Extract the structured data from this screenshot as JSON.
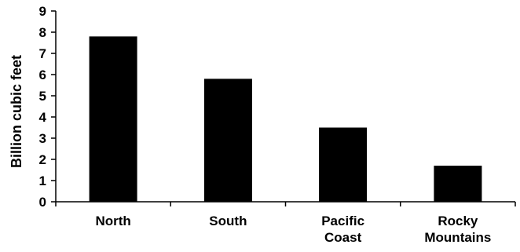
{
  "chart_data": {
    "type": "bar",
    "categories": [
      [
        "North"
      ],
      [
        "South"
      ],
      [
        "Pacific",
        "Coast"
      ],
      [
        "Rocky",
        "Mountains"
      ]
    ],
    "values": [
      7.8,
      5.8,
      3.5,
      1.7
    ],
    "ylabel": "Billion cubic feet",
    "xlabel": "",
    "ylim": [
      0,
      9
    ],
    "yticks": [
      0,
      1,
      2,
      3,
      4,
      5,
      6,
      7,
      8,
      9
    ],
    "grid": false,
    "legend": "none",
    "bar_color": "#000000"
  }
}
